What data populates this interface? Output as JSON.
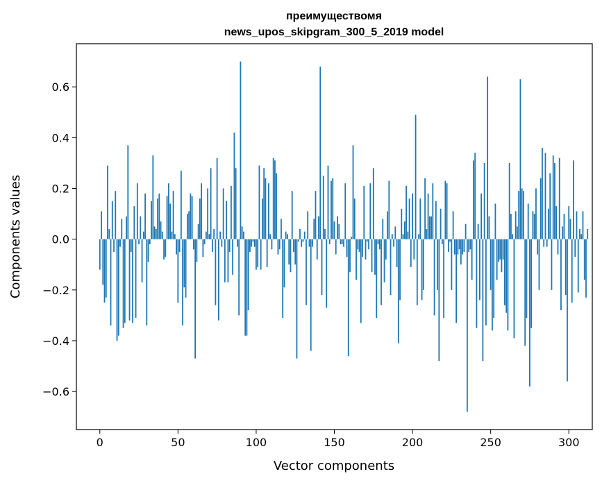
{
  "chart_data": {
    "type": "bar",
    "title_line1": "преимуществомя",
    "title_line2": "news_upos_skipgram_300_5_2019 model",
    "xlabel": "Vector components",
    "ylabel": "Components values",
    "xlim": [
      -15,
      315
    ],
    "ylim": [
      -0.75,
      0.77
    ],
    "xticks": [
      0,
      50,
      100,
      150,
      200,
      250,
      300
    ],
    "xtick_labels": [
      "0",
      "50",
      "100",
      "150",
      "200",
      "250",
      "300"
    ],
    "yticks": [
      -0.6,
      -0.4,
      -0.2,
      0.0,
      0.2,
      0.4,
      0.6
    ],
    "ytick_labels": [
      "−0.6",
      "−0.4",
      "−0.2",
      "0.0",
      "0.2",
      "0.4",
      "0.6"
    ],
    "color": "#1f77b4",
    "values": [
      -0.12,
      0.11,
      -0.18,
      -0.25,
      -0.23,
      0.29,
      0.04,
      -0.34,
      0.15,
      -0.05,
      0.19,
      -0.4,
      -0.38,
      -0.03,
      0.08,
      -0.35,
      -0.33,
      0.09,
      0.37,
      -0.32,
      -0.05,
      -0.33,
      0.13,
      -0.31,
      0.22,
      -0.02,
      0.09,
      -0.17,
      0.03,
      0.18,
      -0.34,
      -0.09,
      -0.02,
      0.15,
      0.33,
      0.05,
      0.04,
      0.16,
      0.18,
      0.07,
      0.03,
      -0.08,
      -0.07,
      0.17,
      0.22,
      0.14,
      0.03,
      0.19,
      0.02,
      -0.06,
      -0.25,
      -0.05,
      0.27,
      -0.34,
      -0.19,
      -0.23,
      0.1,
      0.11,
      0.18,
      0.17,
      -0.04,
      -0.47,
      -0.09,
      0.06,
      0.16,
      0.22,
      -0.07,
      -0.02,
      0.03,
      0.2,
      0.02,
      0.28,
      -0.05,
      0.04,
      -0.26,
      0.32,
      -0.32,
      0.03,
      -0.03,
      0.2,
      -0.17,
      0.15,
      -0.17,
      -0.05,
      0.21,
      -0.14,
      0.42,
      0.28,
      -0.03,
      -0.3,
      0.7,
      0.05,
      0.03,
      -0.38,
      -0.38,
      -0.28,
      -0.05,
      -0.03,
      -0.01,
      -0.03,
      -0.12,
      -0.11,
      0.29,
      -0.12,
      0.16,
      0.28,
      0.24,
      -0.11,
      0.22,
      0.02,
      -0.04,
      0.32,
      0.31,
      0.26,
      -0.06,
      -0.04,
      0.08,
      -0.31,
      -0.19,
      0.03,
      0.02,
      -0.1,
      -0.13,
      0.19,
      -0.05,
      -0.1,
      -0.47,
      -0.01,
      0.04,
      -0.03,
      -0.01,
      0.03,
      -0.26,
      0.11,
      -0.03,
      -0.44,
      -0.03,
      0.08,
      0.19,
      -0.08,
      0.09,
      0.68,
      -0.22,
      0.25,
      0.04,
      -0.27,
      0.29,
      -0.02,
      0.23,
      0.24,
      0.07,
      -0.06,
      0.09,
      0.06,
      -0.02,
      -0.02,
      -0.03,
      0.22,
      -0.07,
      -0.46,
      -0.13,
      0.01,
      0.37,
      0.16,
      -0.16,
      -0.04,
      -0.05,
      -0.33,
      -0.07,
      0.21,
      -0.08,
      -0.01,
      -0.04,
      0.22,
      -0.13,
      0.28,
      -0.14,
      -0.31,
      -0.02,
      -0.04,
      -0.26,
      0.08,
      -0.17,
      -0.08,
      0.11,
      0.23,
      -0.22,
      0.02,
      -0.03,
      0.05,
      -0.11,
      -0.41,
      -0.24,
      0.12,
      0.02,
      0.07,
      0.21,
      0.03,
      0.16,
      -0.11,
      0.18,
      -0.08,
      0.49,
      -0.26,
      0.02,
      0.16,
      -0.24,
      -0.2,
      0.24,
      0.04,
      0.18,
      0.09,
      0.09,
      0.22,
      -0.3,
      0.15,
      -0.2,
      -0.48,
      0.12,
      -0.02,
      -0.31,
      0.23,
      0.22,
      -0.05,
      -0.01,
      -0.2,
      0.11,
      -0.06,
      -0.33,
      -0.06,
      -0.04,
      -0.1,
      -0.06,
      -0.05,
      0.06,
      -0.68,
      -0.05,
      -0.04,
      -0.16,
      0.31,
      0.34,
      -0.35,
      0.06,
      -0.24,
      0.18,
      -0.48,
      0.3,
      -0.34,
      0.64,
      0.09,
      -0.2,
      -0.36,
      -0.31,
      0.14,
      -0.16,
      -0.09,
      -0.08,
      -0.13,
      -0.08,
      -0.26,
      -0.29,
      -0.36,
      0.3,
      0.1,
      0.02,
      -0.39,
      0.11,
      0.05,
      0.19,
      0.63,
      0.2,
      0.19,
      -0.42,
      -0.31,
      0.14,
      -0.58,
      -0.35,
      0.11,
      0.1,
      0.2,
      -0.06,
      -0.2,
      0.24,
      0.36,
      -0.03,
      0.34,
      -0.03,
      0.12,
      0.26,
      -0.2,
      0.33,
      0.3,
      0.13,
      -0.06,
      0.32,
      -0.28,
      0.05,
      0.1,
      -0.22,
      -0.56,
      0.13,
      0.08,
      -0.25,
      0.31,
      -0.07,
      0.11,
      -0.21,
      0.04,
      0.02,
      0.11,
      -0.16,
      -0.23,
      0.04
    ]
  }
}
